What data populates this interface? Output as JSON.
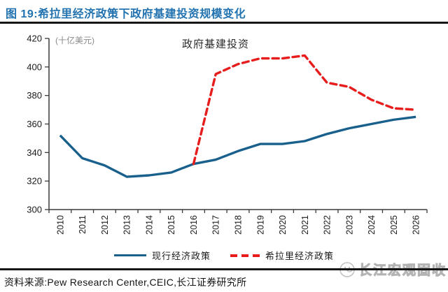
{
  "header": {
    "title": "图 19:希拉里经济政策下政府基建投资规模变化"
  },
  "chart_data": {
    "type": "line",
    "annotation": "政府基建投资",
    "unit_label": "(十亿美元)",
    "x": [
      "2010",
      "2011",
      "2012",
      "2013",
      "2014",
      "2015",
      "2016",
      "2017",
      "2018",
      "2019",
      "2020",
      "2021",
      "2022",
      "2023",
      "2024",
      "2025",
      "2026"
    ],
    "series": [
      {
        "name": "现行经济政策",
        "style": "solid",
        "color": "#19608C",
        "x_offset": 0,
        "values": [
          352,
          336,
          331,
          323,
          324,
          326,
          332,
          335,
          341,
          346,
          346,
          348,
          353,
          357,
          360,
          363,
          365
        ]
      },
      {
        "name": "希拉里经济政策",
        "style": "dashed",
        "color": "#E71D1D",
        "x_offset": 6,
        "values": [
          332,
          395,
          402,
          406,
          406,
          408,
          389,
          386,
          377,
          371,
          370
        ]
      }
    ],
    "ylim": [
      300,
      420
    ],
    "ytick_step": 20,
    "grid": false,
    "legend_position": "bottom"
  },
  "footer": {
    "source": "资料来源:Pew Research Center,CEIC,长江证券研究所",
    "watermark": "长江宏观固收"
  },
  "icons": {
    "watermark_logo": "wave-circle-logo-icon"
  },
  "colors": {
    "title_blue": "#2273B0",
    "current_policy_line": "#19608C",
    "hillary_policy_line": "#E71D1D",
    "rule_dark": "#161616",
    "axis": "#3a3a3a",
    "unit_gray": "#8a8a8a",
    "watermark_gray": "#b3b3b3"
  }
}
